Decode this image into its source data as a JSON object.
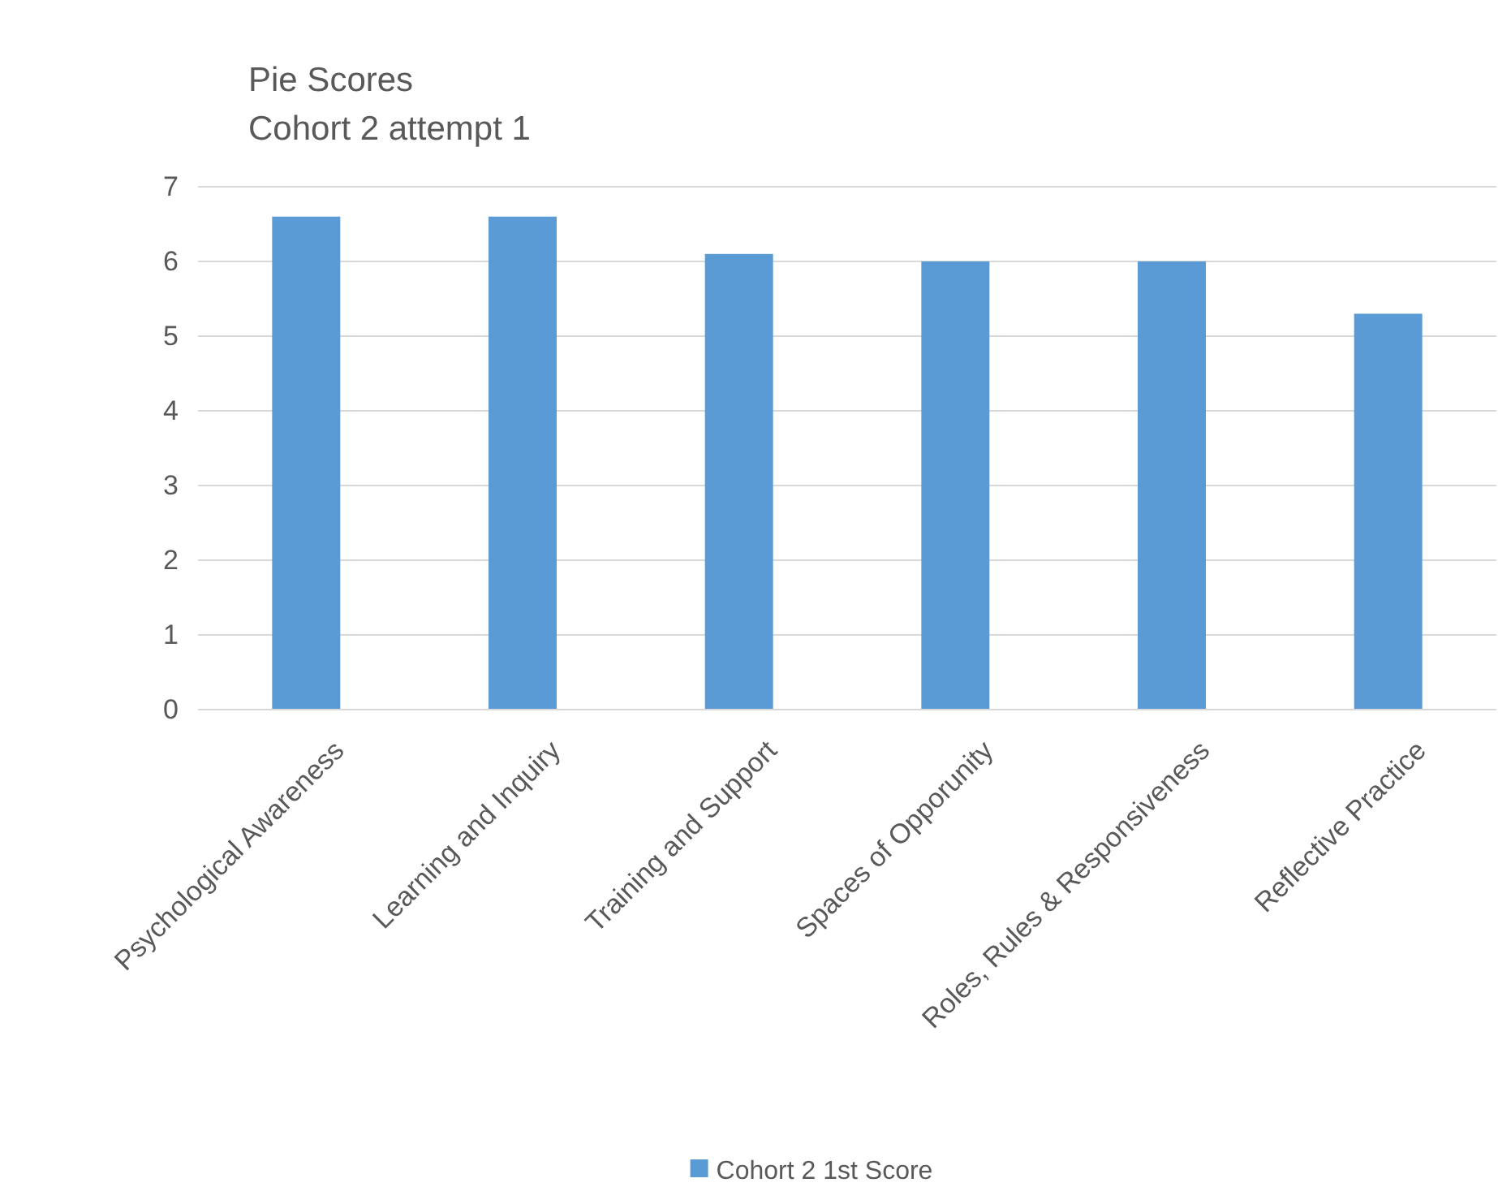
{
  "chart_data": {
    "type": "bar",
    "title": "Pie Scores",
    "subtitle": "Cohort 2 attempt 1",
    "categories": [
      "Psychological Awareness",
      "Learning and Inquiry",
      "Training and Support",
      "Spaces of Opporunity",
      "Roles, Rules & Responsiveness",
      "Reflective Practice"
    ],
    "series": [
      {
        "name": "Cohort 2 1st Score",
        "color": "#5b9bd5",
        "values": [
          6.6,
          6.6,
          6.1,
          6.0,
          6.0,
          5.3
        ]
      }
    ],
    "ylim": [
      0,
      7
    ],
    "yticks": [
      0,
      1,
      2,
      3,
      4,
      5,
      6,
      7
    ],
    "grid": "y",
    "legend": "bottom"
  }
}
